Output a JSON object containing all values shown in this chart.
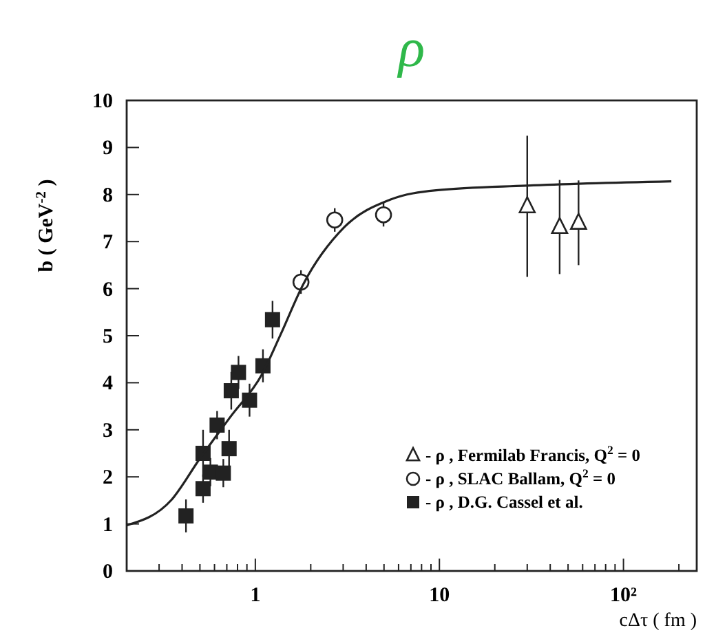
{
  "chart_data": {
    "type": "scatter",
    "title": "ρ",
    "xlabel": "cΔτ ( fm )",
    "ylabel": "b ( GeV$^{-2}$ )",
    "log": "x",
    "xlim": [
      0.2,
      250
    ],
    "ylim": [
      0,
      10
    ],
    "xticks": [
      {
        "value": 0.3,
        "label": null
      },
      {
        "value": 0.4,
        "label": null
      },
      {
        "value": 0.5,
        "label": null
      },
      {
        "value": 0.6,
        "label": null
      },
      {
        "value": 0.7,
        "label": null
      },
      {
        "value": 0.8,
        "label": null
      },
      {
        "value": 0.9,
        "label": null
      },
      1,
      {
        "value": 2,
        "label": null
      },
      {
        "value": 3,
        "label": null
      },
      {
        "value": 4,
        "label": null
      },
      {
        "value": 5,
        "label": null
      },
      {
        "value": 6,
        "label": null
      },
      {
        "value": 7,
        "label": null
      },
      {
        "value": 8,
        "label": null
      },
      {
        "value": 9,
        "label": null
      },
      10,
      {
        "value": 20,
        "label": null
      },
      {
        "value": 30,
        "label": null
      },
      {
        "value": 40,
        "label": null
      },
      {
        "value": 50,
        "label": null
      },
      {
        "value": 60,
        "label": null
      },
      {
        "value": 70,
        "label": null
      },
      {
        "value": 80,
        "label": null
      },
      {
        "value": 90,
        "label": null
      },
      {
        "value": 100,
        "label": "10²"
      },
      {
        "value": 200,
        "label": null
      }
    ],
    "yticks": [
      0,
      1,
      2,
      3,
      4,
      5,
      6,
      7,
      8,
      9,
      10
    ],
    "grid": false,
    "legend": "bottom right",
    "series": [
      {
        "name": "- ρ , Fermilab Francis, Q$^{2}$ = 0",
        "marker": "triangle",
        "color": "#222222",
        "x": [
          30,
          45,
          57
        ],
        "values": [
          7.75,
          7.31,
          7.4
        ],
        "errors": [
          1.5,
          1.0,
          0.9
        ]
      },
      {
        "name": "- ρ , SLAC Ballam, Q$^{2}$ = 0",
        "marker": "circle",
        "color": "#222222",
        "x": [
          1.77,
          2.7,
          4.97
        ],
        "values": [
          6.14,
          7.46,
          7.57
        ],
        "errors": [
          0.25,
          0.25,
          0.25
        ]
      },
      {
        "name": "- ρ , D.G. Cassel et al.",
        "marker": "square",
        "color": "#222222",
        "x": [
          0.42,
          0.52,
          0.52,
          0.57,
          0.67,
          0.72,
          0.62,
          0.74,
          0.81,
          0.93,
          1.1,
          1.24
        ],
        "values": [
          1.17,
          1.75,
          2.5,
          2.1,
          2.08,
          2.6,
          3.1,
          3.83,
          4.22,
          3.63,
          4.36,
          5.34
        ],
        "errors": [
          0.35,
          0.3,
          0.5,
          0.3,
          0.3,
          0.4,
          0.3,
          0.4,
          0.35,
          0.35,
          0.35,
          0.4
        ]
      },
      {
        "type": "line",
        "marker": "none",
        "color": "#222222",
        "x": [
          0.2,
          0.35,
          0.5,
          0.73,
          1.09,
          1.37,
          1.82,
          3.05,
          5.4,
          9.6,
          30,
          182
        ],
        "values": [
          0.97,
          1.51,
          2.39,
          3.27,
          4.19,
          5.02,
          6.09,
          7.31,
          7.89,
          8.09,
          8.19,
          8.28
        ]
      }
    ]
  }
}
